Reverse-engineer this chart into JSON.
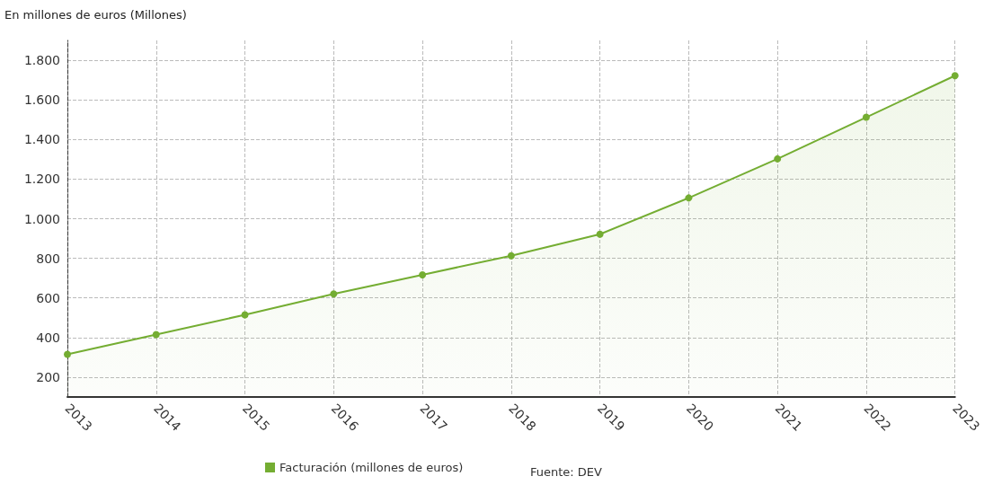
{
  "chart_data": {
    "type": "area",
    "ylabel": "En millones de euros (Millones)",
    "categories": [
      "2013",
      "2014",
      "2015",
      "2016",
      "2017",
      "2018",
      "2019",
      "2020",
      "2021",
      "2022",
      "2023"
    ],
    "series": [
      {
        "name": "Facturación (millones de euros)",
        "color": "#74ad32",
        "values": [
          315,
          415,
          515,
          620,
          717,
          813,
          922,
          1105,
          1302,
          1512,
          1722
        ]
      }
    ],
    "ylim": [
      100,
      1900
    ],
    "yticks": [
      200,
      400,
      600,
      800,
      {
        "value": 1000,
        "label": "1.000"
      },
      {
        "value": 1200,
        "label": "1.200"
      },
      {
        "value": 1400,
        "label": "1.400"
      },
      {
        "value": 1600,
        "label": "1.600"
      },
      {
        "value": 1800,
        "label": "1.800"
      }
    ],
    "grid": true,
    "legend": "bottom",
    "marker": "circle",
    "line_style": "solid",
    "annotations": [
      "Fuente: DEV"
    ]
  }
}
